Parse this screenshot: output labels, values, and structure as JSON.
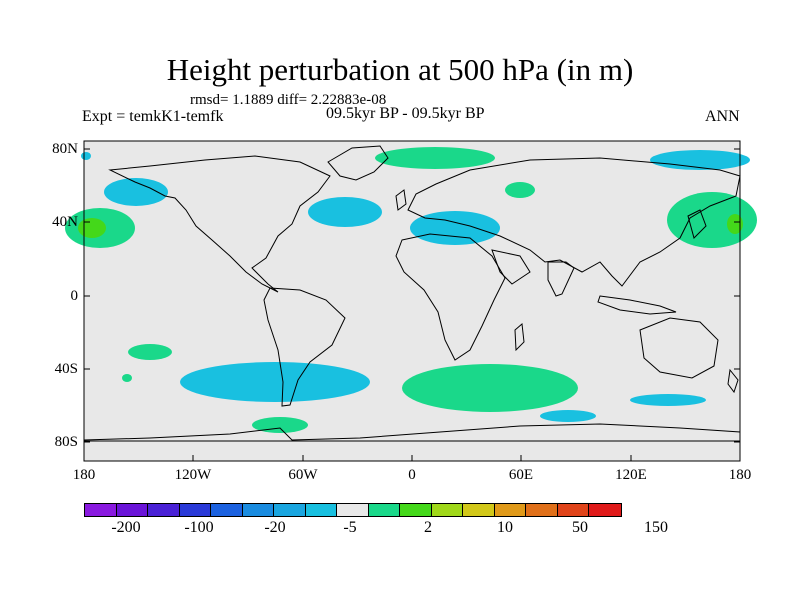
{
  "header": {
    "title": "Height perturbation at 500 hPa (in m)",
    "stats": "rmsd= 1.1889 diff= 2.22883e-08",
    "experiment": "Expt = temkK1-temfk",
    "period": "09.5kyr BP - 09.5kyr BP",
    "season": "ANN"
  },
  "axes": {
    "lat_labels": [
      "80N",
      "40N",
      "0",
      "40S",
      "80S"
    ],
    "lon_labels": [
      "180",
      "120W",
      "60W",
      "0",
      "60E",
      "120E",
      "180"
    ]
  },
  "colorbar": {
    "colors": [
      "#8a1ae0",
      "#6a14d8",
      "#4a22d6",
      "#2a3ad8",
      "#1c62e0",
      "#1a8ce0",
      "#1aa6e0",
      "#19c0e0",
      "#e8e8e8",
      "#1ad88a",
      "#44d81a",
      "#a0d81a",
      "#d2c81a",
      "#e09a1a",
      "#e0701a",
      "#e0441a",
      "#e01a1a"
    ],
    "labels": [
      "-200",
      "-100",
      "-20",
      "-5",
      "2",
      "10",
      "50",
      "150"
    ]
  },
  "map_data": {
    "background": "#e8e8e8",
    "anomaly_colors": {
      "positive": "#1ad88a",
      "negative": "#19c0e0"
    }
  }
}
